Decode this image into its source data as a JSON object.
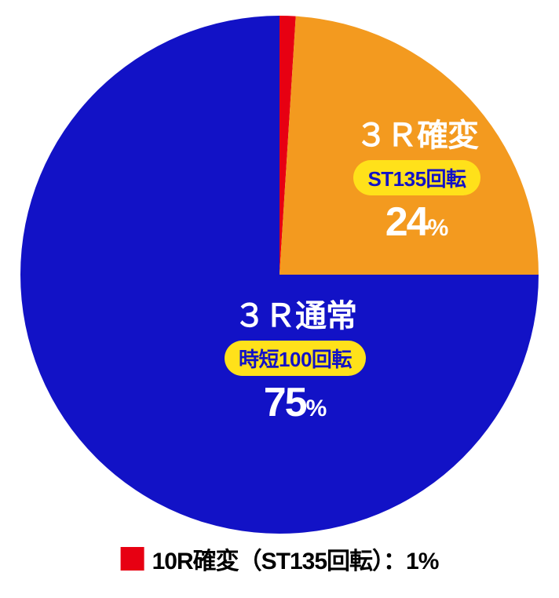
{
  "chart": {
    "type": "pie",
    "background_color": "#ffffff",
    "diameter": 660,
    "slices": [
      {
        "id": "red",
        "value": 1,
        "color": "#e70012"
      },
      {
        "id": "orange",
        "value": 24,
        "color": "#f39a1f"
      },
      {
        "id": "blue",
        "value": 75,
        "color": "#1212c6"
      }
    ],
    "start_angle_deg": -90,
    "labels": {
      "orange": {
        "title": "３Ｒ確変",
        "pill": "ST135回転",
        "pct_num": "24",
        "pct_sym": "%"
      },
      "blue": {
        "title": "３Ｒ通常",
        "pill": "時短100回転",
        "pct_num": "75",
        "pct_sym": "%"
      }
    },
    "pill_bg": "#ffe11a",
    "pill_fg": "#1212c6",
    "label_text_color": "#ffffff"
  },
  "legend": {
    "square_color": "#e70012",
    "text": "10R確変（ST135回転）：1%"
  }
}
